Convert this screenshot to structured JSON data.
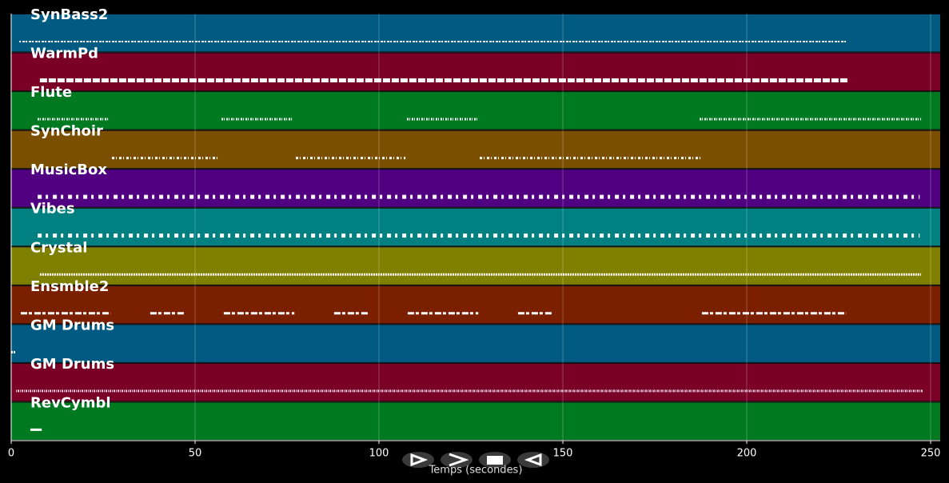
{
  "chart_data": {
    "type": "timeline",
    "x_label": "Temps (secondes)",
    "xlim": [
      0,
      252.6
    ],
    "xticks": [
      0,
      50,
      100,
      150,
      200,
      250
    ],
    "grid": true,
    "series": [
      {
        "name": "SynBass2",
        "color": "#005a82",
        "spans": [
          [
            2.2,
            227.4
          ]
        ]
      },
      {
        "name": "WarmPd",
        "color": "#7a0028",
        "spans": [
          [
            7.8,
            227.4
          ]
        ]
      },
      {
        "name": "Flute",
        "color": "#007a20",
        "spans": [
          [
            7.2,
            26.7
          ],
          [
            57.2,
            76.7
          ],
          [
            107.6,
            127
          ],
          [
            187.2,
            247.4
          ]
        ]
      },
      {
        "name": "SynChoir",
        "color": "#7a5000",
        "spans": [
          [
            27.4,
            56.7
          ],
          [
            77.4,
            107.2
          ],
          [
            127.4,
            188
          ]
        ]
      },
      {
        "name": "MusicBox",
        "color": "#500080",
        "spans": [
          [
            7.2,
            247
          ]
        ]
      },
      {
        "name": "Vibes",
        "color": "#008080",
        "spans": [
          [
            7.2,
            247
          ]
        ]
      },
      {
        "name": "Crystal",
        "color": "#808000",
        "spans": [
          [
            7.8,
            247.4
          ]
        ]
      },
      {
        "name": "Ensmble2",
        "color": "#7a2000",
        "spans": [
          [
            2.6,
            27
          ],
          [
            37.8,
            47
          ],
          [
            57.8,
            77
          ],
          [
            87.8,
            97
          ],
          [
            107.8,
            127
          ],
          [
            137.8,
            147
          ],
          [
            187.8,
            227
          ]
        ]
      },
      {
        "name": "GM Drums",
        "color": "#005a82",
        "spans": [
          [
            0,
            1.3
          ]
        ]
      },
      {
        "name": "GM Drums",
        "color": "#7a0028",
        "spans": [
          [
            1.3,
            247.8
          ]
        ]
      },
      {
        "name": "RevCymbl",
        "color": "#007a20",
        "spans": [
          [
            5.2,
            8.3
          ]
        ]
      }
    ]
  }
}
